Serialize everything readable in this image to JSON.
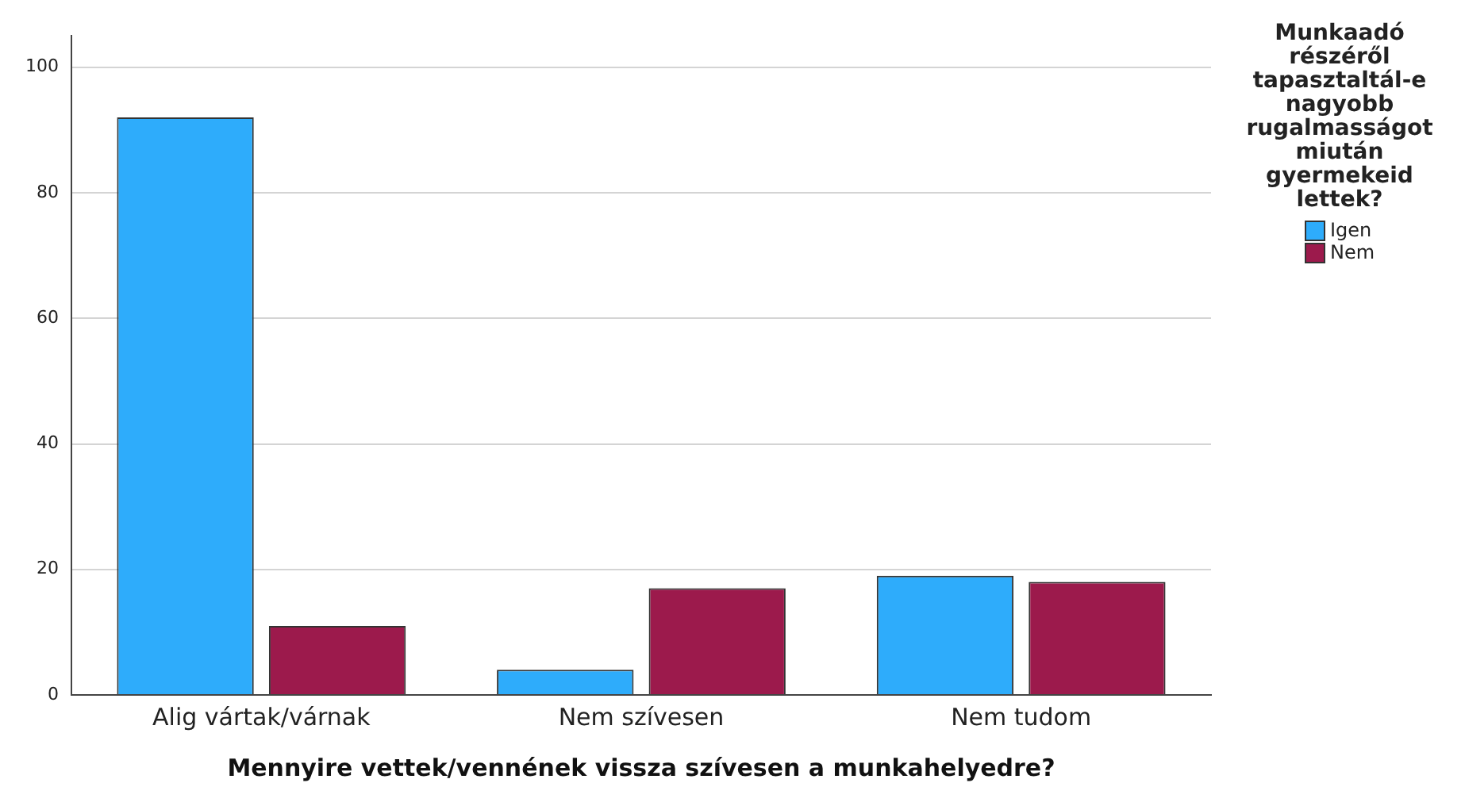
{
  "chart_data": {
    "type": "bar",
    "xlabel": "Mennyire vettek/vennének vissza szívesen a munkahelyedre?",
    "legend_title": "Munkaadó részéről tapasztaltál-e nagyobb rugalmasságot miután gyermekeid lettek?",
    "categories": [
      "Alig vártak/várnak",
      "Nem szívesen",
      "Nem tudom"
    ],
    "series": [
      {
        "name": "Igen",
        "color": "#2eacfb",
        "values": [
          92,
          4,
          19
        ]
      },
      {
        "name": "Nem",
        "color": "#9c1a4c",
        "values": [
          11,
          17,
          18
        ]
      }
    ],
    "ylim": [
      0,
      105
    ],
    "yticks": [
      0,
      20,
      40,
      60,
      80,
      100
    ],
    "grid": "y",
    "legend": "top right"
  }
}
